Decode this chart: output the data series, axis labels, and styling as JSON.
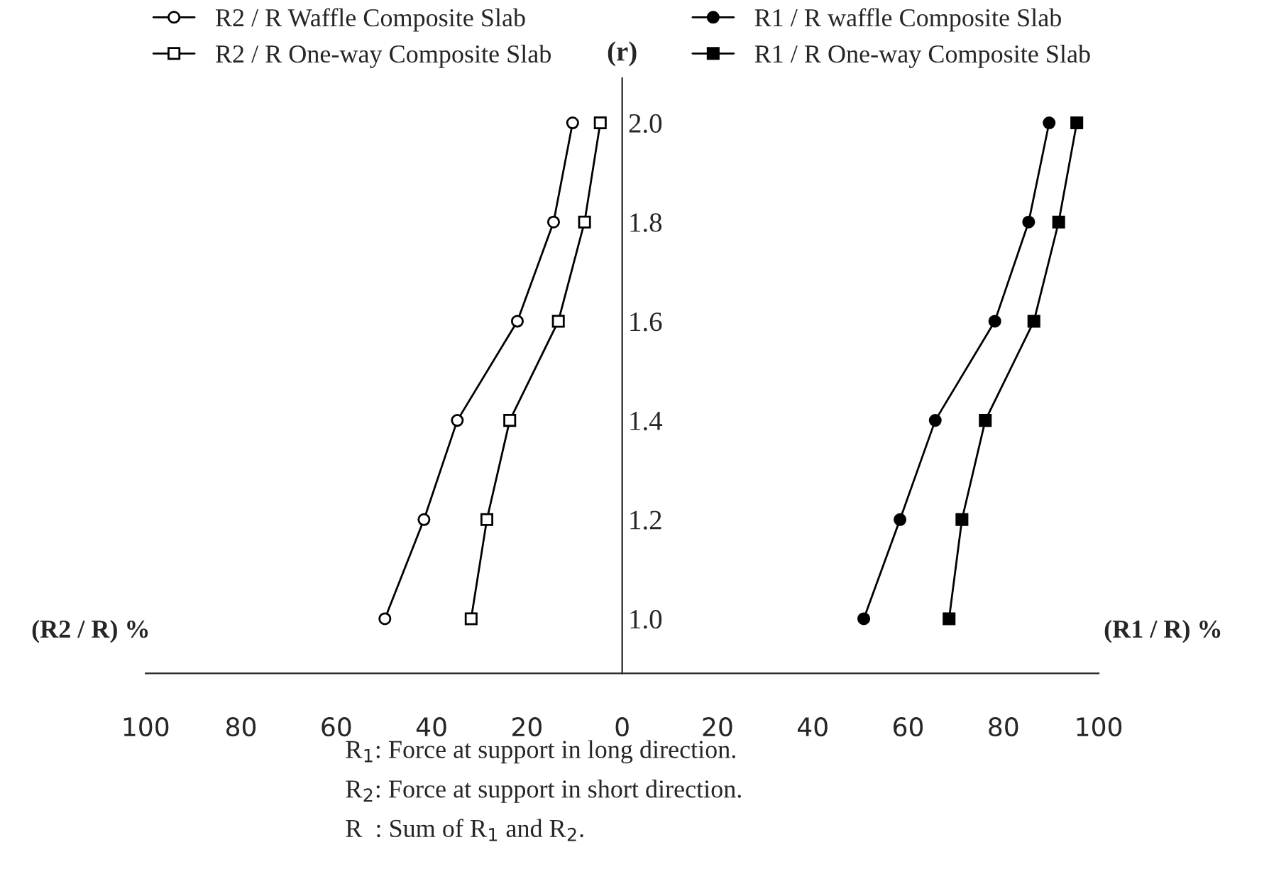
{
  "chart_data": {
    "type": "line",
    "ylabel": "(r)",
    "series": [
      {
        "name": "R2 / R Waffle Composite Slab",
        "color": "#000000",
        "marker": "circle",
        "x": [
          -49.8,
          -41.6,
          -34.6,
          -22.0,
          -14.4,
          -10.4
        ],
        "values": [
          1.0,
          1.2,
          1.4,
          1.6,
          1.8,
          2.0
        ]
      },
      {
        "name": "R2 / R One-way Composite Slab",
        "color": "#000000",
        "marker": "square",
        "x": [
          -31.7,
          -28.4,
          -23.6,
          -13.4,
          -7.9,
          -4.6
        ],
        "values": [
          1.0,
          1.2,
          1.4,
          1.6,
          1.8,
          2.0
        ]
      },
      {
        "name": "R1 / R waffle Composite Slab",
        "color": "#000000",
        "marker": "circle",
        "x": [
          50.7,
          58.3,
          65.7,
          78.2,
          85.3,
          89.6
        ],
        "values": [
          1.0,
          1.2,
          1.4,
          1.6,
          1.8,
          2.0
        ]
      },
      {
        "name": "R1 / R One-way Composite Slab",
        "color": "#000000",
        "marker": "square",
        "x": [
          68.6,
          71.3,
          76.2,
          86.4,
          91.6,
          95.4
        ],
        "values": [
          1.0,
          1.2,
          1.4,
          1.6,
          1.8,
          2.0
        ]
      }
    ],
    "xlim": [
      -100,
      100
    ],
    "xticks": [
      {
        "value": -100,
        "label": "100"
      },
      {
        "value": -80,
        "label": "80"
      },
      {
        "value": -60,
        "label": "60"
      },
      {
        "value": -40,
        "label": "40"
      },
      {
        "value": -20,
        "label": "20"
      },
      0,
      20,
      40,
      60,
      80,
      100
    ],
    "ylim": [
      0.89,
      2.09
    ],
    "yticks": [
      {
        "value": 1.0,
        "label": "1.0"
      },
      {
        "value": 1.2,
        "label": "1.2"
      },
      {
        "value": 1.4,
        "label": "1.4"
      },
      {
        "value": 1.6,
        "label": "1.6"
      },
      {
        "value": 1.8,
        "label": "1.8"
      },
      {
        "value": 2.0,
        "label": "2.0"
      }
    ],
    "annotations": [
      "(R2 / R) %",
      "(R1 / R) %",
      "R$_{1}$: Force at support in long direction.",
      "R$_{2}$: Force at support in short direction.",
      "R  : Sum of R$_{1}$ and R$_{2}$."
    ],
    "legend": "top",
    "line_style": "solid"
  }
}
